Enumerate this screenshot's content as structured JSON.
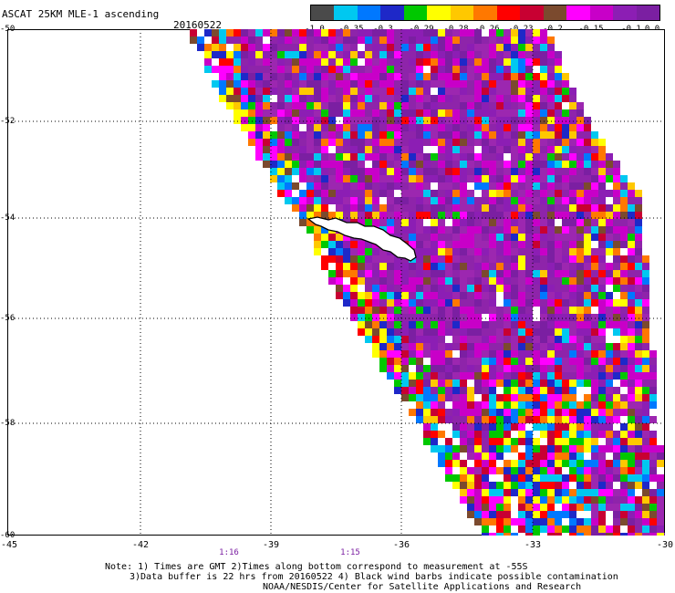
{
  "header": {
    "title": "ASCAT 25KM MLE-1 ascending",
    "date": "20160522"
  },
  "colorbar": {
    "colors": [
      "#4a4a4a",
      "#00c8f0",
      "#0078ff",
      "#1e28c8",
      "#00c800",
      "#ffff00",
      "#ffc800",
      "#ff7800",
      "#ff0000",
      "#c80032",
      "#7b4a2e",
      "#ff00ff",
      "#c800c8",
      "#8c1eb4",
      "#7b1fa2"
    ],
    "labels": [
      "-1.0",
      "-0.35",
      "-0.3",
      "-0.29",
      "-0.28",
      "-0.26",
      "-0.23",
      "-0.2",
      "-0.15",
      "-0.1",
      "0.0"
    ]
  },
  "axes": {
    "lat_labels": [
      "-50",
      "-52",
      "-54",
      "-56",
      "-58",
      "-60"
    ],
    "lon_labels": [
      "-45",
      "-42",
      "-39",
      "-36",
      "-33",
      "-30"
    ]
  },
  "times": [
    "1:16",
    "1:15"
  ],
  "notes": {
    "line1": "Note: 1) Times are GMT 2)Times along bottom correspond to measurement at -55S",
    "line2": "3)Data buffer is 22 hrs from 20160522 4) Black wind barbs indicate possible contamination",
    "line3": "NOAA/NESDIS/Center for Satellite Applications and Research"
  }
}
